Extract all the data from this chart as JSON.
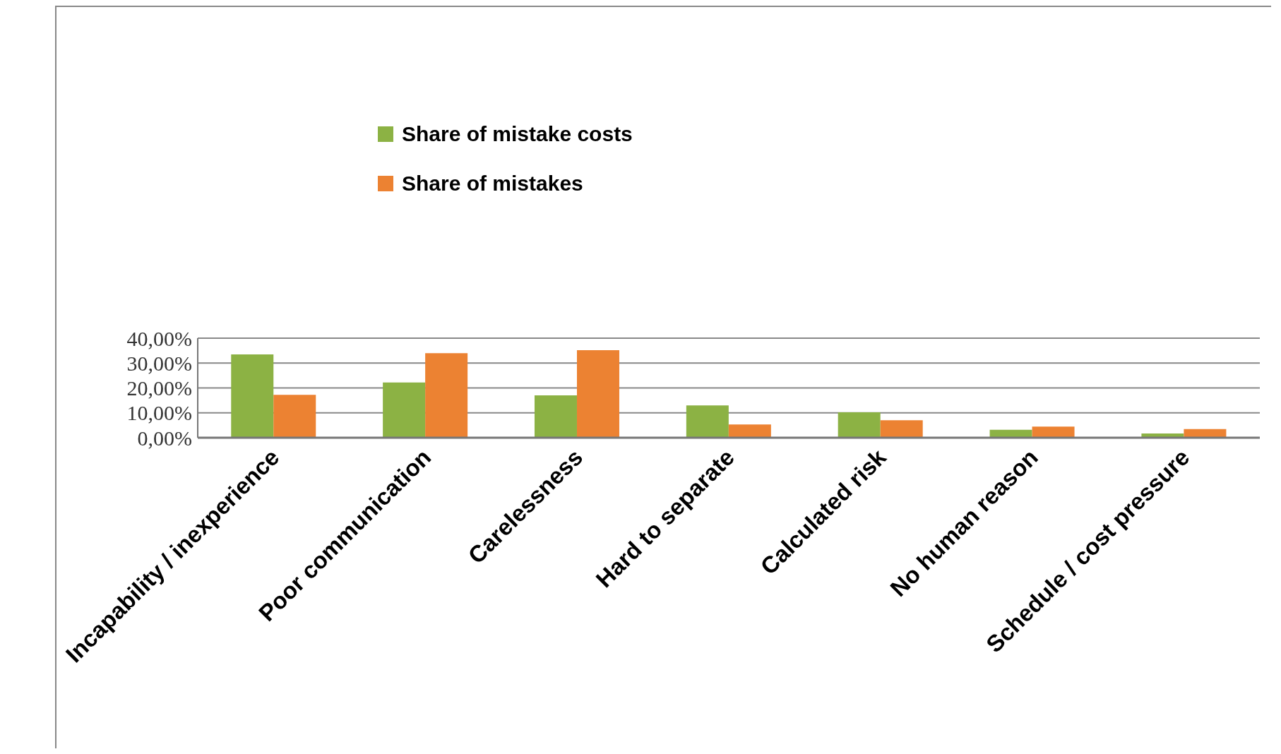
{
  "chart_data": {
    "type": "bar",
    "categories": [
      "Incapability / inexperience",
      "Poor communication",
      "Carelessness",
      "Hard to separate",
      "Calculated risk",
      "No human reason",
      "Schedule / cost pressure"
    ],
    "series": [
      {
        "name": "Share of mistake costs",
        "color": "#8cb244",
        "values": [
          33.5,
          22.2,
          17,
          13,
          10.2,
          3.2,
          1.7
        ]
      },
      {
        "name": "Share of mistakes",
        "color": "#ec8232",
        "values": [
          17.2,
          34,
          35.2,
          5.3,
          7,
          4.5,
          3.5
        ]
      }
    ],
    "ylim": [
      0,
      40
    ],
    "yticks": [
      {
        "value": 0,
        "label": "0,00%"
      },
      {
        "value": 10,
        "label": "10,00%"
      },
      {
        "value": 20,
        "label": "20,00%"
      },
      {
        "value": 30,
        "label": "30,00%"
      },
      {
        "value": 40,
        "label": "40,00%"
      }
    ],
    "grid": "y",
    "legend": "top"
  }
}
